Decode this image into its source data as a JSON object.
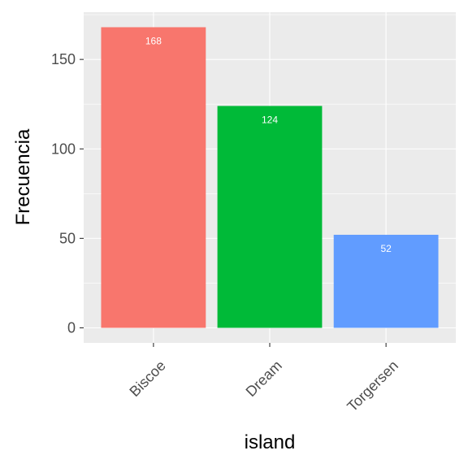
{
  "chart_data": {
    "type": "bar",
    "categories": [
      "Biscoe",
      "Dream",
      "Torgersen"
    ],
    "values": [
      168,
      124,
      52
    ],
    "data_labels": [
      "168",
      "124",
      "52"
    ],
    "colors": [
      "#F8766D",
      "#00BA38",
      "#619CFF"
    ],
    "xlabel": "island",
    "ylabel": "Frecuencia",
    "ylim": [
      -8.4,
      176.4
    ],
    "yticks": [
      0,
      50,
      100,
      150
    ],
    "ytick_labels": [
      "0",
      "50",
      "100",
      "150"
    ],
    "grid": true,
    "panel_color": "#EBEBEB",
    "grid_color": "#FFFFFF",
    "x_tick_rotation": "45 degrees",
    "legend": "none"
  }
}
